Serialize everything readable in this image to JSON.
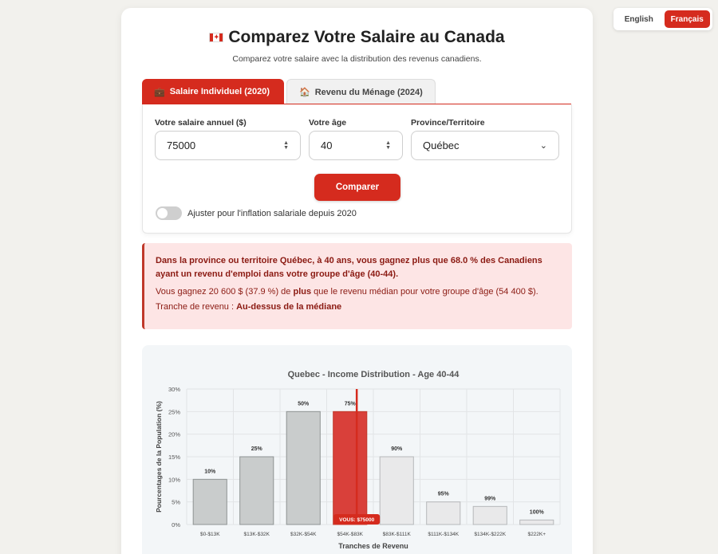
{
  "lang": {
    "en": "English",
    "fr": "Français"
  },
  "header": {
    "flag": "🇨🇦",
    "title": "Comparez Votre Salaire au Canada",
    "subtitle": "Comparez votre salaire avec la distribution des revenus canadiens."
  },
  "tabs": [
    {
      "icon": "💼",
      "label": "Salaire Individuel (2020)"
    },
    {
      "icon": "🏠",
      "label": "Revenu du Ménage (2024)"
    }
  ],
  "form": {
    "salary_label": "Votre salaire annuel ($)",
    "salary_value": "75000",
    "age_label": "Votre âge",
    "age_value": "40",
    "province_label": "Province/Territoire",
    "province_value": "Québec",
    "compare_label": "Comparer",
    "inflation_label": "Ajuster pour l'inflation salariale depuis 2020"
  },
  "result": {
    "main": "Dans la province ou territoire Québec, à 40 ans, vous gagnez plus que 68.0 % des Canadiens ayant un revenu d'emploi dans votre groupe d'âge (40-44).",
    "diff_prefix": "Vous gagnez 20 600 $ (37.9 %) de ",
    "diff_bold": "plus",
    "diff_suffix": " que le revenu médian pour votre groupe d'âge (54 400 $).",
    "bracket_label": "Tranche de revenu : ",
    "bracket_value": "Au-dessus de la médiane"
  },
  "chart_data": {
    "type": "bar",
    "title": "Quebec - Income Distribution - Age 40-44",
    "xlabel": "Tranches de Revenu",
    "ylabel": "Pourcentages de la Population (%)",
    "ylim": [
      0,
      30
    ],
    "yticks": [
      "0%",
      "5%",
      "10%",
      "15%",
      "20%",
      "25%",
      "30%"
    ],
    "categories": [
      "$0-$13K",
      "$13K-$32K",
      "$32K-$54K",
      "$54K-$83K",
      "$83K-$111K",
      "$111K-$134K",
      "$134K-$222K",
      "$222K+"
    ],
    "values": [
      10,
      15,
      25,
      25,
      15,
      5,
      4,
      1
    ],
    "bar_labels": [
      "10%",
      "25%",
      "50%",
      "75%",
      "90%",
      "95%",
      "99%",
      "100%"
    ],
    "highlight_index": 3,
    "user_marker_label": "VOUS: $75000",
    "colors": {
      "below": "#c9cccc",
      "user": "#d9403a",
      "above": "#e9e9ea",
      "marker": "#d52b1e"
    }
  }
}
